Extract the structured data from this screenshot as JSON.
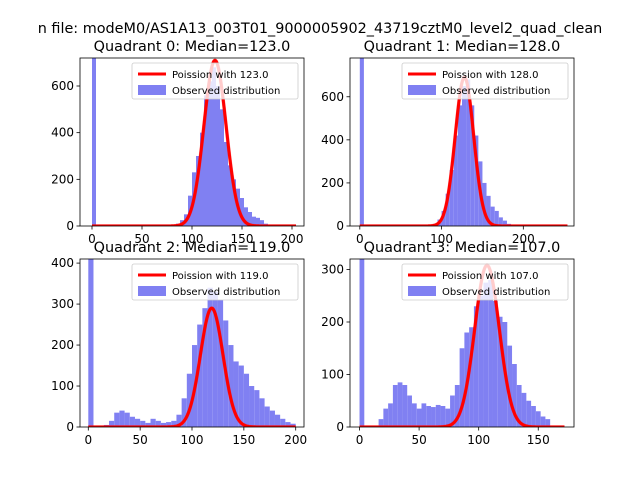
{
  "figure": {
    "suptitle": "n file: modeM0/AS1A13_003T01_9000005902_43719cztM0_level2_quad_clean"
  },
  "colors": {
    "hist": "#8080f2",
    "poisson": "#ff0000",
    "axes": "#000000"
  },
  "chart_data": [
    {
      "type": "bar",
      "title": "Quadrant 0: Median=123.0",
      "xlim": [
        -12,
        212
      ],
      "ylim": [
        0,
        720
      ],
      "xticks": [
        0,
        50,
        100,
        150,
        200
      ],
      "yticks": [
        0,
        200,
        400,
        600
      ],
      "bin_width": 4,
      "legend": {
        "position": "top-right",
        "entries": [
          "Poission with 123.0",
          "Observed distribution"
        ]
      },
      "mean": 123,
      "poisson_peak": 710,
      "bin_starts": [
        0,
        84,
        88,
        92,
        96,
        100,
        104,
        108,
        112,
        116,
        120,
        124,
        128,
        132,
        136,
        140,
        144,
        148,
        152,
        156,
        160,
        164,
        168,
        172,
        176,
        180
      ],
      "counts": [
        720,
        10,
        25,
        50,
        130,
        230,
        300,
        400,
        560,
        620,
        680,
        600,
        500,
        360,
        260,
        200,
        160,
        120,
        80,
        60,
        40,
        35,
        25,
        10,
        5,
        3
      ]
    },
    {
      "type": "bar",
      "title": "Quadrant 1: Median=128.0",
      "xlim": [
        -12,
        262
      ],
      "ylim": [
        0,
        780
      ],
      "xticks": [
        0,
        100,
        200
      ],
      "yticks": [
        0,
        200,
        400,
        600
      ],
      "bin_width": 5,
      "legend": {
        "position": "top-right",
        "entries": [
          "Poission with 128.0",
          "Observed distribution"
        ]
      },
      "mean": 128,
      "poisson_peak": 690,
      "bin_starts": [
        0,
        90,
        95,
        100,
        105,
        110,
        115,
        120,
        125,
        130,
        135,
        140,
        145,
        150,
        155,
        160,
        165,
        170,
        175,
        180
      ],
      "counts": [
        780,
        10,
        30,
        70,
        150,
        260,
        420,
        560,
        650,
        680,
        560,
        420,
        300,
        200,
        140,
        90,
        70,
        40,
        25,
        10
      ]
    },
    {
      "type": "bar",
      "title": "Quadrant 2: Median=119.0",
      "xlim": [
        -8,
        208
      ],
      "ylim": [
        0,
        410
      ],
      "xticks": [
        0,
        50,
        100,
        150,
        200
      ],
      "yticks": [
        0,
        100,
        200,
        300,
        400
      ],
      "bin_width": 5,
      "legend": {
        "position": "top-right",
        "entries": [
          "Poission with 119.0",
          "Observed distribution"
        ]
      },
      "mean": 119,
      "poisson_peak": 290,
      "bin_starts": [
        0,
        15,
        20,
        25,
        30,
        35,
        40,
        45,
        50,
        55,
        60,
        65,
        70,
        75,
        80,
        85,
        90,
        95,
        100,
        105,
        110,
        115,
        120,
        125,
        130,
        135,
        140,
        145,
        150,
        155,
        160,
        165,
        170,
        175,
        180,
        185,
        190,
        195
      ],
      "counts": [
        410,
        5,
        15,
        35,
        40,
        35,
        25,
        20,
        15,
        10,
        20,
        15,
        10,
        12,
        15,
        30,
        70,
        130,
        200,
        250,
        290,
        340,
        330,
        310,
        260,
        200,
        160,
        150,
        130,
        100,
        90,
        70,
        50,
        40,
        30,
        20,
        12,
        8
      ]
    },
    {
      "type": "bar",
      "title": "Quadrant 3: Median=107.0",
      "xlim": [
        -8,
        180
      ],
      "ylim": [
        0,
        320
      ],
      "xticks": [
        0,
        50,
        100,
        150
      ],
      "yticks": [
        0,
        100,
        200,
        300
      ],
      "bin_width": 4,
      "legend": {
        "position": "top-right",
        "entries": [
          "Poission with 107.0",
          "Observed distribution"
        ]
      },
      "mean": 107,
      "poisson_peak": 308,
      "bin_starts": [
        0,
        16,
        20,
        24,
        28,
        32,
        36,
        40,
        44,
        48,
        52,
        56,
        60,
        64,
        68,
        72,
        76,
        80,
        84,
        88,
        92,
        96,
        100,
        104,
        108,
        112,
        116,
        120,
        124,
        128,
        132,
        136,
        140,
        144,
        148,
        152,
        156
      ],
      "counts": [
        320,
        15,
        35,
        45,
        80,
        85,
        80,
        60,
        45,
        35,
        45,
        40,
        38,
        42,
        40,
        35,
        60,
        80,
        150,
        180,
        190,
        230,
        250,
        275,
        280,
        240,
        210,
        200,
        155,
        120,
        80,
        65,
        50,
        40,
        30,
        20,
        15
      ]
    }
  ]
}
